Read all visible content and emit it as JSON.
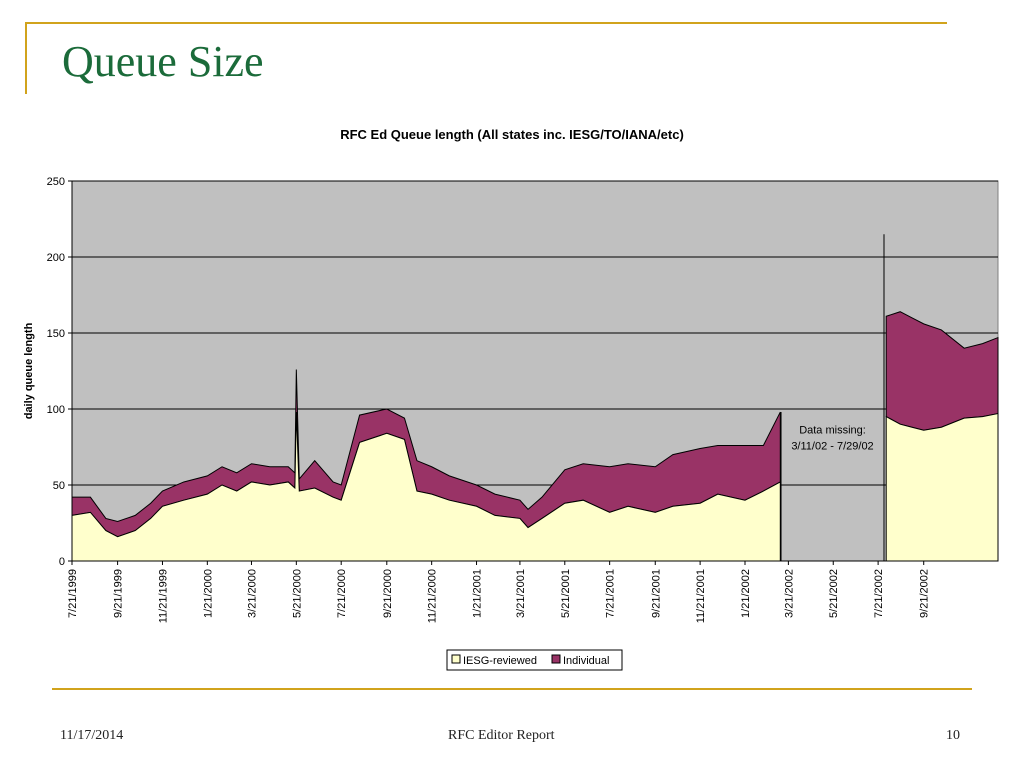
{
  "slide": {
    "title": "Queue Size",
    "footer_date": "11/17/2014",
    "footer_center": "RFC Editor Report",
    "footer_page": "10"
  },
  "colors": {
    "accent_rule": "#d1a31c",
    "title": "#1b6b3a",
    "plot_bg": "#c0c0c0",
    "iesg_fill": "#ffffcc",
    "individual_fill": "#993366"
  },
  "chart_data": {
    "type": "area",
    "stacked": true,
    "title": "RFC Ed Queue length (All states inc. IESG/TO/IANA/etc)",
    "xlabel": "",
    "ylabel": "daily queue length",
    "ylim": [
      0,
      250
    ],
    "yticks": [
      0,
      50,
      100,
      150,
      200,
      250
    ],
    "xlim": [
      "1999-07-21",
      "2002-12-31"
    ],
    "xticks": [
      "7/21/1999",
      "9/21/1999",
      "11/21/1999",
      "1/21/2000",
      "3/21/2000",
      "5/21/2000",
      "7/21/2000",
      "9/21/2000",
      "11/21/2000",
      "1/21/2001",
      "3/21/2001",
      "5/21/2001",
      "7/21/2001",
      "9/21/2001",
      "11/21/2001",
      "1/21/2002",
      "3/21/2002",
      "5/21/2002",
      "7/21/2002",
      "9/21/2002"
    ],
    "grid": "horizontal",
    "legend": "bottom",
    "annotation": {
      "lines": [
        "Data missing:",
        "3/11/02 - 7/29/02"
      ],
      "date": "2002-05-20",
      "y": 80
    },
    "x": [
      "1999-07-21",
      "1999-08-15",
      "1999-09-05",
      "1999-09-21",
      "1999-10-15",
      "1999-11-05",
      "1999-11-21",
      "1999-12-20",
      "2000-01-21",
      "2000-02-10",
      "2000-03-01",
      "2000-03-21",
      "2000-04-15",
      "2000-05-10",
      "2000-05-19",
      "2000-05-21",
      "2000-05-25",
      "2000-06-15",
      "2000-07-10",
      "2000-07-21",
      "2000-08-15",
      "2000-09-21",
      "2000-10-15",
      "2000-11-01",
      "2000-11-21",
      "2000-12-15",
      "2001-01-21",
      "2001-02-15",
      "2001-03-21",
      "2001-04-01",
      "2001-04-20",
      "2001-05-21",
      "2001-06-15",
      "2001-07-21",
      "2001-08-15",
      "2001-09-21",
      "2001-10-15",
      "2001-11-21",
      "2001-12-15",
      "2002-01-21",
      "2002-02-15",
      "2002-03-10",
      "2002-03-11",
      "2002-07-29",
      "2002-07-30",
      "2002-08-01",
      "2002-08-20",
      "2002-09-05",
      "2002-09-21",
      "2002-10-15",
      "2002-11-15",
      "2002-12-10",
      "2002-12-31"
    ],
    "series": [
      {
        "name": "IESG-reviewed",
        "color": "#ffffcc",
        "values": [
          30,
          32,
          20,
          16,
          20,
          28,
          36,
          40,
          44,
          50,
          46,
          52,
          50,
          52,
          48,
          98,
          46,
          48,
          42,
          40,
          78,
          84,
          80,
          46,
          44,
          40,
          36,
          30,
          28,
          22,
          28,
          38,
          40,
          32,
          36,
          32,
          36,
          38,
          44,
          40,
          46,
          52,
          0,
          0,
          0,
          95,
          90,
          88,
          86,
          88,
          94,
          95,
          97
        ]
      },
      {
        "name": "Individual",
        "color": "#993366",
        "values": [
          12,
          10,
          8,
          10,
          10,
          10,
          10,
          12,
          12,
          12,
          12,
          12,
          12,
          10,
          10,
          28,
          8,
          18,
          10,
          10,
          18,
          16,
          14,
          20,
          18,
          16,
          14,
          14,
          12,
          12,
          14,
          22,
          24,
          30,
          28,
          30,
          34,
          36,
          32,
          36,
          30,
          46,
          0,
          0,
          0,
          66,
          74,
          72,
          70,
          64,
          46,
          48,
          50
        ]
      }
    ]
  }
}
